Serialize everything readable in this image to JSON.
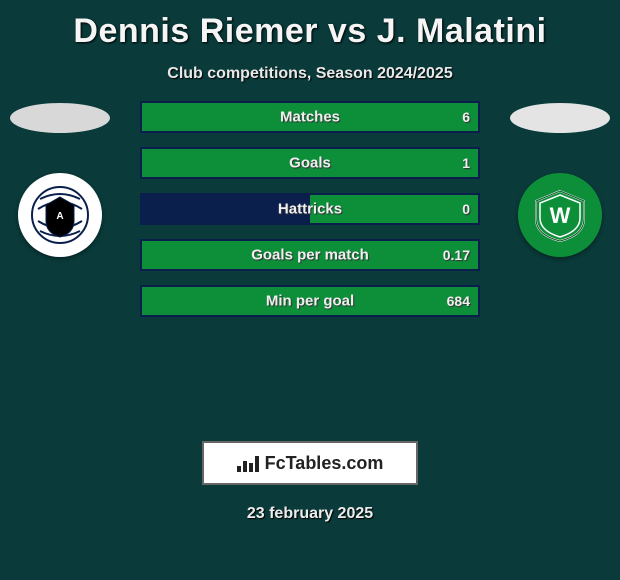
{
  "title": "Dennis Riemer vs J. Malatini",
  "subtitle": "Club competitions, Season 2024/2025",
  "date": "23 february 2025",
  "logo_text": "FcTables.com",
  "players": {
    "left": {
      "photo_bg": "#d8d8d8",
      "club": {
        "badge_bg": "#ffffff",
        "accent": "#0b1f4d",
        "inner": "#000000"
      }
    },
    "right": {
      "photo_bg": "#e4e4e4",
      "club": {
        "badge_bg": "#0d8f3a",
        "accent": "#ffffff",
        "inner": "#0d8f3a"
      }
    }
  },
  "stats": [
    {
      "label": "Matches",
      "left_value": "",
      "right_value": "6",
      "left_pct": 0,
      "right_pct": 100
    },
    {
      "label": "Goals",
      "left_value": "",
      "right_value": "1",
      "left_pct": 0,
      "right_pct": 100
    },
    {
      "label": "Hattricks",
      "left_value": "",
      "right_value": "0",
      "left_pct": 50,
      "right_pct": 50
    },
    {
      "label": "Goals per match",
      "left_value": "",
      "right_value": "0.17",
      "left_pct": 0,
      "right_pct": 100
    },
    {
      "label": "Min per goal",
      "left_value": "",
      "right_value": "684",
      "left_pct": 0,
      "right_pct": 100
    }
  ],
  "style": {
    "background": "#0a3a3a",
    "bar_border": "#0b1f4d",
    "left_fill": "#0b1f4d",
    "right_fill": "#0d8f3a",
    "value_hidden_color": "transparent",
    "value_color": "#efefef"
  }
}
